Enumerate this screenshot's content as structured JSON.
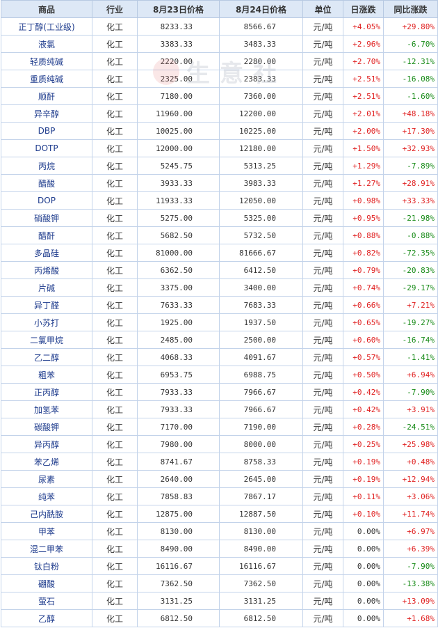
{
  "headers": [
    "商品",
    "行业",
    "8月23日价格",
    "8月24日价格",
    "单位",
    "日涨跌",
    "同比涨跌"
  ],
  "watermark": "生意社",
  "colors": {
    "up": "#e02020",
    "down": "#168a16",
    "header_bg": "#dde8f6",
    "border": "#c3d3ea"
  },
  "rows": [
    {
      "name": "正丁醇(工业级)",
      "industry": "化工",
      "p23": "8233.33",
      "p24": "8566.67",
      "unit": "元/吨",
      "day": "+4.05%",
      "yoy": "+29.80%"
    },
    {
      "name": "液氯",
      "industry": "化工",
      "p23": "3383.33",
      "p24": "3483.33",
      "unit": "元/吨",
      "day": "+2.96%",
      "yoy": "-6.70%"
    },
    {
      "name": "轻质纯碱",
      "industry": "化工",
      "p23": "2220.00",
      "p24": "2280.00",
      "unit": "元/吨",
      "day": "+2.70%",
      "yoy": "-12.31%"
    },
    {
      "name": "重质纯碱",
      "industry": "化工",
      "p23": "2325.00",
      "p24": "2383.33",
      "unit": "元/吨",
      "day": "+2.51%",
      "yoy": "-16.08%"
    },
    {
      "name": "顺酐",
      "industry": "化工",
      "p23": "7180.00",
      "p24": "7360.00",
      "unit": "元/吨",
      "day": "+2.51%",
      "yoy": "-1.60%"
    },
    {
      "name": "异辛醇",
      "industry": "化工",
      "p23": "11960.00",
      "p24": "12200.00",
      "unit": "元/吨",
      "day": "+2.01%",
      "yoy": "+48.18%"
    },
    {
      "name": "DBP",
      "industry": "化工",
      "p23": "10025.00",
      "p24": "10225.00",
      "unit": "元/吨",
      "day": "+2.00%",
      "yoy": "+17.30%"
    },
    {
      "name": "DOTP",
      "industry": "化工",
      "p23": "12000.00",
      "p24": "12180.00",
      "unit": "元/吨",
      "day": "+1.50%",
      "yoy": "+32.93%"
    },
    {
      "name": "丙烷",
      "industry": "化工",
      "p23": "5245.75",
      "p24": "5313.25",
      "unit": "元/吨",
      "day": "+1.29%",
      "yoy": "-7.89%"
    },
    {
      "name": "醋酸",
      "industry": "化工",
      "p23": "3933.33",
      "p24": "3983.33",
      "unit": "元/吨",
      "day": "+1.27%",
      "yoy": "+28.91%"
    },
    {
      "name": "DOP",
      "industry": "化工",
      "p23": "11933.33",
      "p24": "12050.00",
      "unit": "元/吨",
      "day": "+0.98%",
      "yoy": "+33.33%"
    },
    {
      "name": "硝酸钾",
      "industry": "化工",
      "p23": "5275.00",
      "p24": "5325.00",
      "unit": "元/吨",
      "day": "+0.95%",
      "yoy": "-21.98%"
    },
    {
      "name": "醋酐",
      "industry": "化工",
      "p23": "5682.50",
      "p24": "5732.50",
      "unit": "元/吨",
      "day": "+0.88%",
      "yoy": "-0.88%"
    },
    {
      "name": "多晶硅",
      "industry": "化工",
      "p23": "81000.00",
      "p24": "81666.67",
      "unit": "元/吨",
      "day": "+0.82%",
      "yoy": "-72.35%"
    },
    {
      "name": "丙烯酸",
      "industry": "化工",
      "p23": "6362.50",
      "p24": "6412.50",
      "unit": "元/吨",
      "day": "+0.79%",
      "yoy": "-20.83%"
    },
    {
      "name": "片碱",
      "industry": "化工",
      "p23": "3375.00",
      "p24": "3400.00",
      "unit": "元/吨",
      "day": "+0.74%",
      "yoy": "-29.17%"
    },
    {
      "name": "异丁醛",
      "industry": "化工",
      "p23": "7633.33",
      "p24": "7683.33",
      "unit": "元/吨",
      "day": "+0.66%",
      "yoy": "+7.21%"
    },
    {
      "name": "小苏打",
      "industry": "化工",
      "p23": "1925.00",
      "p24": "1937.50",
      "unit": "元/吨",
      "day": "+0.65%",
      "yoy": "-19.27%"
    },
    {
      "name": "二氯甲烷",
      "industry": "化工",
      "p23": "2485.00",
      "p24": "2500.00",
      "unit": "元/吨",
      "day": "+0.60%",
      "yoy": "-16.74%"
    },
    {
      "name": "乙二醇",
      "industry": "化工",
      "p23": "4068.33",
      "p24": "4091.67",
      "unit": "元/吨",
      "day": "+0.57%",
      "yoy": "-1.41%"
    },
    {
      "name": "粗苯",
      "industry": "化工",
      "p23": "6953.75",
      "p24": "6988.75",
      "unit": "元/吨",
      "day": "+0.50%",
      "yoy": "+6.94%"
    },
    {
      "name": "正丙醇",
      "industry": "化工",
      "p23": "7933.33",
      "p24": "7966.67",
      "unit": "元/吨",
      "day": "+0.42%",
      "yoy": "-7.90%"
    },
    {
      "name": "加氢苯",
      "industry": "化工",
      "p23": "7933.33",
      "p24": "7966.67",
      "unit": "元/吨",
      "day": "+0.42%",
      "yoy": "+3.91%"
    },
    {
      "name": "碳酸钾",
      "industry": "化工",
      "p23": "7170.00",
      "p24": "7190.00",
      "unit": "元/吨",
      "day": "+0.28%",
      "yoy": "-24.51%"
    },
    {
      "name": "异丙醇",
      "industry": "化工",
      "p23": "7980.00",
      "p24": "8000.00",
      "unit": "元/吨",
      "day": "+0.25%",
      "yoy": "+25.98%"
    },
    {
      "name": "苯乙烯",
      "industry": "化工",
      "p23": "8741.67",
      "p24": "8758.33",
      "unit": "元/吨",
      "day": "+0.19%",
      "yoy": "+0.48%"
    },
    {
      "name": "尿素",
      "industry": "化工",
      "p23": "2640.00",
      "p24": "2645.00",
      "unit": "元/吨",
      "day": "+0.19%",
      "yoy": "+12.94%"
    },
    {
      "name": "纯苯",
      "industry": "化工",
      "p23": "7858.83",
      "p24": "7867.17",
      "unit": "元/吨",
      "day": "+0.11%",
      "yoy": "+3.06%"
    },
    {
      "name": "己内酰胺",
      "industry": "化工",
      "p23": "12875.00",
      "p24": "12887.50",
      "unit": "元/吨",
      "day": "+0.10%",
      "yoy": "+11.74%"
    },
    {
      "name": "甲苯",
      "industry": "化工",
      "p23": "8130.00",
      "p24": "8130.00",
      "unit": "元/吨",
      "day": "0.00%",
      "yoy": "+6.97%"
    },
    {
      "name": "混二甲苯",
      "industry": "化工",
      "p23": "8490.00",
      "p24": "8490.00",
      "unit": "元/吨",
      "day": "0.00%",
      "yoy": "+6.39%"
    },
    {
      "name": "钛白粉",
      "industry": "化工",
      "p23": "16116.67",
      "p24": "16116.67",
      "unit": "元/吨",
      "day": "0.00%",
      "yoy": "-7.90%"
    },
    {
      "name": "硼酸",
      "industry": "化工",
      "p23": "7362.50",
      "p24": "7362.50",
      "unit": "元/吨",
      "day": "0.00%",
      "yoy": "-13.38%"
    },
    {
      "name": "萤石",
      "industry": "化工",
      "p23": "3131.25",
      "p24": "3131.25",
      "unit": "元/吨",
      "day": "0.00%",
      "yoy": "+13.09%"
    },
    {
      "name": "乙醇",
      "industry": "化工",
      "p23": "6812.50",
      "p24": "6812.50",
      "unit": "元/吨",
      "day": "0.00%",
      "yoy": "+1.68%"
    }
  ]
}
